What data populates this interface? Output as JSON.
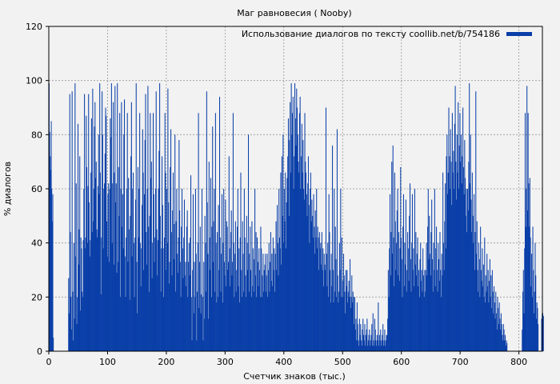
{
  "chart_data": {
    "type": "bar",
    "title": "Маг равновесия ( Nooby)",
    "xlabel": "Счетчик знаков (тыс.)",
    "ylabel": "% диалогов",
    "legend": "Использование диалогов по тексту coollib.net/b/754186",
    "legend_position": "top-right",
    "grid": true,
    "xlim": [
      0,
      840
    ],
    "ylim": [
      0,
      120
    ],
    "xticks": [
      0,
      100,
      200,
      300,
      400,
      500,
      600,
      700,
      800
    ],
    "yticks": [
      0,
      20,
      40,
      60,
      80,
      100,
      120
    ],
    "bar_color": "#0a3fa8",
    "segments": [
      {
        "x_range": [
          0,
          8
        ],
        "values": [
          99,
          81,
          72,
          67,
          85,
          60,
          48,
          58,
          5
        ]
      },
      {
        "x_range": [
          33,
          103
        ],
        "values": [
          27,
          14,
          95,
          44,
          20,
          8,
          96,
          22,
          4,
          40,
          12,
          99,
          35,
          62,
          10,
          20,
          84,
          32,
          45,
          72,
          15,
          42,
          38,
          22,
          20,
          41,
          60,
          95,
          38,
          42,
          87,
          68,
          40,
          61,
          95,
          55,
          35,
          41,
          66,
          86,
          44,
          97,
          48,
          60,
          83,
          92,
          64,
          70,
          45,
          42,
          61,
          80,
          58,
          99,
          66,
          21,
          42,
          96,
          80,
          38,
          60,
          62,
          73,
          90,
          87,
          48,
          35,
          58,
          62,
          33
        ]
      },
      {
        "x_range": [
          103,
          240
        ],
        "values": [
          60,
          86,
          79,
          99,
          40,
          62,
          92,
          32,
          66,
          98,
          55,
          62,
          29,
          99,
          33,
          68,
          50,
          88,
          20,
          60,
          92,
          46,
          58,
          38,
          80,
          93,
          35,
          20,
          42,
          60,
          88,
          33,
          64,
          45,
          19,
          50,
          72,
          92,
          35,
          60,
          66,
          40,
          20,
          42,
          56,
          99,
          33,
          14,
          68,
          42,
          60,
          88,
          40,
          24,
          38,
          54,
          82,
          66,
          30,
          58,
          78,
          95,
          44,
          32,
          60,
          98,
          46,
          22,
          50,
          88,
          64,
          70,
          27,
          40,
          88,
          58,
          33,
          42,
          60,
          96,
          45,
          28,
          41,
          60,
          74,
          99,
          50,
          22,
          38,
          72,
          54,
          38,
          20,
          42,
          88,
          66,
          30,
          60,
          40,
          97,
          55,
          25,
          33,
          68,
          82,
          44,
          28,
          52,
          66,
          34,
          47,
          80,
          22,
          48,
          60,
          36,
          29,
          42,
          78,
          52,
          33,
          20,
          46,
          60,
          38,
          27,
          42,
          56,
          28,
          33,
          24,
          46,
          52,
          20,
          33,
          40,
          28
        ]
      },
      {
        "x_range": [
          240,
          370
        ],
        "values": [
          42,
          65,
          20,
          4,
          30,
          58,
          14,
          33,
          20,
          60,
          36,
          4,
          22,
          40,
          88,
          16,
          33,
          46,
          14,
          21,
          60,
          20,
          4,
          33,
          12,
          50,
          40,
          22,
          96,
          55,
          36,
          12,
          70,
          42,
          30,
          64,
          20,
          46,
          83,
          33,
          48,
          60,
          22,
          88,
          40,
          18,
          44,
          20,
          54,
          30,
          94,
          42,
          22,
          36,
          58,
          18,
          40,
          60,
          33,
          28,
          56,
          24,
          48,
          46,
          30,
          33,
          72,
          38,
          24,
          44,
          52,
          28,
          33,
          88,
          40,
          20,
          36,
          48,
          22,
          30,
          46,
          60,
          24,
          38,
          18,
          42,
          66,
          30,
          20,
          48,
          36,
          22,
          60,
          42,
          28,
          20,
          50,
          40,
          30,
          80,
          22,
          36,
          46,
          30,
          20,
          48,
          24,
          38,
          22,
          34,
          60,
          28,
          44,
          20,
          42,
          33,
          24,
          38,
          30,
          20,
          46,
          38,
          20,
          28,
          36,
          22,
          30,
          32,
          36,
          22
        ]
      },
      {
        "x_range": [
          370,
          470
        ],
        "values": [
          28,
          36,
          20,
          30,
          40,
          22,
          33,
          44,
          26,
          36,
          24,
          42,
          30,
          38,
          22,
          36,
          48,
          30,
          54,
          40,
          28,
          60,
          42,
          38,
          66,
          32,
          72,
          50,
          80,
          40,
          60,
          48,
          66,
          38,
          55,
          64,
          72,
          86,
          50,
          78,
          92,
          66,
          99,
          80,
          88,
          94,
          60,
          72,
          99,
          86,
          76,
          97,
          90,
          80,
          70,
          66,
          88,
          94,
          60,
          72,
          84,
          66,
          78,
          60,
          56,
          88,
          70,
          66,
          58,
          50,
          62,
          72,
          54,
          40,
          60,
          66,
          48,
          56,
          50,
          42,
          58,
          46,
          36,
          52,
          42,
          60,
          38,
          46,
          42,
          30,
          44,
          38,
          40,
          32,
          44,
          30,
          38,
          24,
          36,
          32
        ]
      },
      {
        "x_range": [
          470,
          520
        ],
        "values": [
          30,
          90,
          36,
          24,
          40,
          20,
          58,
          44,
          30,
          18,
          36,
          24,
          76,
          30,
          18,
          60,
          22,
          46,
          34,
          20,
          82,
          28,
          18,
          22,
          40,
          30,
          60,
          20,
          42,
          26,
          20,
          36,
          28,
          22,
          14,
          30,
          24,
          30,
          18,
          22,
          26,
          20,
          34,
          16,
          20,
          28,
          18,
          22,
          20,
          10
        ]
      },
      {
        "x_range": [
          520,
          545
        ],
        "values": [
          20,
          8,
          12,
          4,
          18,
          10,
          4,
          2,
          12,
          6,
          10,
          4,
          2,
          8,
          12,
          6,
          4,
          10,
          2,
          6,
          8,
          12,
          2,
          4,
          6
        ]
      },
      {
        "x_range": [
          545,
          575
        ],
        "values": [
          8,
          2,
          4,
          6,
          10,
          2,
          14,
          4,
          2,
          12,
          8,
          4,
          2,
          6,
          4,
          18,
          2,
          6,
          4,
          8,
          2,
          4,
          6,
          10,
          2,
          4,
          8,
          2,
          4,
          6
        ]
      },
      {
        "x_range": [
          575,
          640
        ],
        "values": [
          6,
          12,
          30,
          20,
          38,
          58,
          28,
          44,
          70,
          36,
          76,
          42,
          24,
          66,
          48,
          30,
          40,
          52,
          60,
          28,
          44,
          26,
          38,
          68,
          42,
          34,
          20,
          46,
          58,
          24,
          40,
          32,
          56,
          22,
          30,
          44,
          38,
          26,
          50,
          62,
          34,
          22,
          40,
          58,
          30,
          38,
          24,
          60,
          32,
          44,
          28,
          36,
          42,
          24,
          30,
          20,
          34,
          40,
          26,
          30,
          22,
          38,
          28,
          20,
          30
        ]
      },
      {
        "x_range": [
          640,
          712
        ],
        "values": [
          22,
          30,
          40,
          28,
          46,
          60,
          34,
          50,
          36,
          28,
          44,
          56,
          34,
          22,
          40,
          30,
          60,
          24,
          38,
          46,
          30,
          22,
          40,
          34,
          26,
          44,
          30,
          20,
          36,
          28,
          66,
          40,
          30,
          48,
          62,
          38,
          72,
          80,
          58,
          66,
          90,
          72,
          60,
          82,
          70,
          54,
          88,
          66,
          74,
          60,
          84,
          98,
          70,
          56,
          80,
          66,
          92,
          60,
          76,
          88,
          70,
          80,
          62,
          72,
          90,
          68,
          58,
          78,
          64,
          50,
          60,
          44
        ]
      },
      {
        "x_range": [
          712,
          780
        ],
        "values": [
          60,
          52,
          70,
          99,
          62,
          80,
          56,
          44,
          66,
          50,
          40,
          58,
          30,
          44,
          96,
          36,
          48,
          30,
          22,
          40,
          34,
          20,
          46,
          30,
          26,
          38,
          24,
          32,
          20,
          42,
          18,
          28,
          22,
          36,
          24,
          30,
          18,
          26,
          34,
          20,
          28,
          16,
          30,
          22,
          14,
          24,
          18,
          12,
          22,
          14,
          8,
          20,
          16,
          10,
          18,
          12,
          8,
          14,
          10,
          6,
          4,
          10,
          8,
          4,
          6,
          2,
          4,
          3
        ]
      },
      {
        "x_range": [
          805,
          833
        ],
        "values": [
          8,
          22,
          30,
          14,
          38,
          88,
          46,
          60,
          98,
          52,
          88,
          62,
          46,
          64,
          42,
          24,
          36,
          20,
          46,
          30,
          14,
          22,
          40,
          28,
          12,
          18,
          16,
          10
        ]
      },
      {
        "x_range": [
          838,
          842
        ],
        "values": [
          12,
          14,
          14,
          13
        ]
      }
    ]
  }
}
